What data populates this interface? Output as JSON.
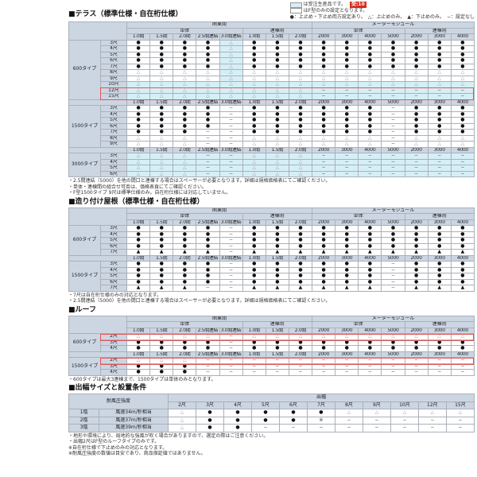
{
  "colors": {
    "header_bg": "#ccd6e3",
    "cyan_highlight": "#d6eff7",
    "red_outline": "#e05555",
    "badge_red": "#d92b1e",
    "border_dark": "#474c52",
    "border_light": "#aab0b8"
  },
  "legend": {
    "cyan_label": "は受注生産品です。",
    "badge": "受:10",
    "white_label": "はF型のみの設定となります。",
    "marks_line": "●：上止め・下止め両方設定あり。　△：上止めのみ。　▲：下止めのみ。　−：設定なし"
  },
  "spec_header": {
    "groups": [
      {
        "label": "関東間",
        "span": 8
      },
      {
        "label": "メーターモジュール",
        "span": 7
      }
    ],
    "subgroups": [
      {
        "label": "単体",
        "span": 5
      },
      {
        "label": "連棟用",
        "span": 3
      },
      {
        "label": "単体",
        "span": 4
      },
      {
        "label": "連棟用",
        "span": 3
      }
    ],
    "sizes": [
      "1.0間",
      "1.5間",
      "2.0間",
      "2.5間連結",
      "3.0間連結",
      "1.0間",
      "1.5間",
      "2.0間",
      "2000",
      "3000",
      "4000",
      "5000",
      "2000",
      "3000",
      "4000"
    ]
  },
  "sections": [
    {
      "kind": "spec",
      "title": "■テラス（標準仕様・自在桁仕様）",
      "blocks": [
        {
          "type_label": "600タイプ",
          "size_row_before": false,
          "rows": [
            {
              "label": "3尺",
              "marks": "●●●●△●●●●●●●●●●",
              "cyan_cols": [
                4
              ]
            },
            {
              "label": "4尺",
              "marks": "●●●●△●●●●●●●●●●",
              "cyan_cols": [
                4
              ]
            },
            {
              "label": "5尺",
              "marks": "●●●●△●●●●●●●●●●",
              "cyan_cols": [
                4
              ]
            },
            {
              "label": "6尺",
              "marks": "●●●●△●●●●●●●●●●",
              "cyan_cols": [
                4
              ]
            },
            {
              "label": "7尺",
              "marks": "●●●●△●●●●●●●●●●",
              "cyan_cols": [
                4
              ]
            },
            {
              "label": "8尺",
              "marks": "△△△△△△△△△△△△△△△",
              "cyan_cols": [
                4
              ]
            },
            {
              "label": "9尺",
              "marks": "△△△△△△△△△△△△△△△",
              "cyan_cols": [
                4
              ]
            },
            {
              "label": "10尺",
              "marks": "△△△△△△△△△△△△△△△",
              "row_cyan": true
            },
            {
              "label": "12尺",
              "marks": "△△△△△△△△−−−−−−−",
              "row_cyan": true,
              "red": true
            },
            {
              "label": "15尺",
              "marks": "△△△△△△△△−−−−−−−",
              "row_cyan": true,
              "red": true
            }
          ]
        },
        {
          "type_label": "1500タイプ",
          "size_row_before": true,
          "rows": [
            {
              "label": "3尺",
              "marks": "●●●●−●●●●●●−●●●"
            },
            {
              "label": "4尺",
              "marks": "●●●●−●●●●●●−●●●"
            },
            {
              "label": "5尺",
              "marks": "●●●●−●●●●●●−●●●"
            },
            {
              "label": "6尺",
              "marks": "●●●●−●●●●●●−●●●"
            },
            {
              "label": "7尺",
              "marks": "●●●−−●●●●●●−●●●"
            },
            {
              "label": "8尺",
              "marks": "△△△−−△△△△△△−△△△"
            },
            {
              "label": "9尺",
              "marks": "△△△−−△△△△△△−△△△"
            }
          ]
        },
        {
          "type_label": "3000タイプ",
          "size_row_before": true,
          "rows": [
            {
              "label": "3尺",
              "marks": "△△△−−△△△−−−−−−−",
              "row_cyan": true
            },
            {
              "label": "4尺",
              "marks": "△△△−−△△△−−−−−−−",
              "row_cyan": true
            },
            {
              "label": "5尺",
              "marks": "△△△−−△△△−−−−−−−",
              "row_cyan": true
            },
            {
              "label": "6尺",
              "marks": "△△△−−△△△−−−−−−−",
              "row_cyan": true
            }
          ]
        }
      ],
      "notes": [
        "・2.5間連結（5000）を他の間口と連棟する場合はスペーサーが必要となります。詳細は規格価格表にてご確認ください。",
        "・単体・連棟間の組合せ可否は、価格表頁にてご確認ください。",
        "・F型1500タイプ 9尺は標準仕様のみ。自在桁仕様には対応していません。"
      ]
    },
    {
      "kind": "spec",
      "title": "■造り付け屋根（標準仕様・自在桁仕様）",
      "blocks": [
        {
          "type_label": "600タイプ",
          "size_row_before": false,
          "rows": [
            {
              "label": "3尺",
              "marks": "●●●●−●●●●●●●●●●"
            },
            {
              "label": "4尺",
              "marks": "●●●●−●●●●●●●●●●"
            },
            {
              "label": "5尺",
              "marks": "●●●●−●●●●●●●●●●"
            },
            {
              "label": "6尺",
              "marks": "●●●●−●●●●●●●●●●"
            },
            {
              "label": "7尺",
              "marks": "▲▲▲▲−▲▲▲▲▲▲▲▲▲▲"
            }
          ]
        },
        {
          "type_label": "1500タイプ",
          "size_row_before": true,
          "rows": [
            {
              "label": "3尺",
              "marks": "●●●●−●●●●●●−●●●"
            },
            {
              "label": "4尺",
              "marks": "●●●●−●●●●●●−●●●"
            },
            {
              "label": "5尺",
              "marks": "●●●●−●●●●●●−●●●"
            },
            {
              "label": "6尺",
              "marks": "●●●●−●●●●●●−●●●"
            },
            {
              "label": "7尺",
              "marks": "▲▲▲−−▲▲▲▲▲▲−▲▲▲"
            }
          ]
        }
      ],
      "notes": [
        "・7尺は自在桁仕様のみの対応となります。",
        "・2.5間連結（5000）を他の間口と連棟する場合はスペーサーが必要となります。詳細は規格価格表にてご確認ください。"
      ]
    },
    {
      "kind": "spec",
      "title": "■ルーフ",
      "blocks": [
        {
          "type_label": "600タイプ",
          "size_row_before": false,
          "rows": [
            {
              "label": "2尺",
              "marks": "△△△△−△△△△△△△△△△",
              "red": true
            },
            {
              "label": "3尺",
              "marks": "●●●●−●●●●●●●●●●"
            },
            {
              "label": "4尺",
              "marks": "●●●●−●●●●●●●●●●"
            }
          ]
        },
        {
          "type_label": "1500タイプ",
          "size_row_before": true,
          "rows": [
            {
              "label": "2尺",
              "marks": "△△△−−−−−−−−−−−−",
              "red": true
            },
            {
              "label": "3尺",
              "marks": "●●●−−−−−−−−−−−−"
            },
            {
              "label": "4尺",
              "marks": "●●●−−−−−−−−−−−−"
            }
          ]
        }
      ],
      "notes": [
        "・600タイプは最大3連棟まで、1500タイプは単体のみとなります。"
      ]
    },
    {
      "kind": "wind",
      "title": "■出幅サイズと設置条件",
      "table": {
        "corner_label": "耐風圧強度",
        "group_label": "出幅",
        "cols": [
          "2尺",
          "3尺",
          "4尺",
          "5尺",
          "6尺",
          "7尺",
          "8尺",
          "9尺",
          "10尺",
          "12尺",
          "15尺"
        ],
        "rows": [
          {
            "floor": "1階",
            "wind": "風速34m/秒相当",
            "marks": "△●●●●●△△△△△"
          },
          {
            "floor": "2階",
            "wind": "風速37m/秒相当",
            "marks": "△●●●●※−−−−−"
          },
          {
            "floor": "3階",
            "wind": "風速39m/秒相当",
            "marks": "△●●−−−−−−−−"
          }
        ]
      },
      "notes": [
        "・地形や環境により、局地的な強風が吹く場合がありますので、選定の際はご注意ください。",
        "・出幅2尺はF型のルーフタイプのみです。",
        "※自在桁仕様で下止めのみの対応となります。",
        "※耐風圧強度の数値は目安であり、商品保証値ではありません。"
      ]
    }
  ]
}
